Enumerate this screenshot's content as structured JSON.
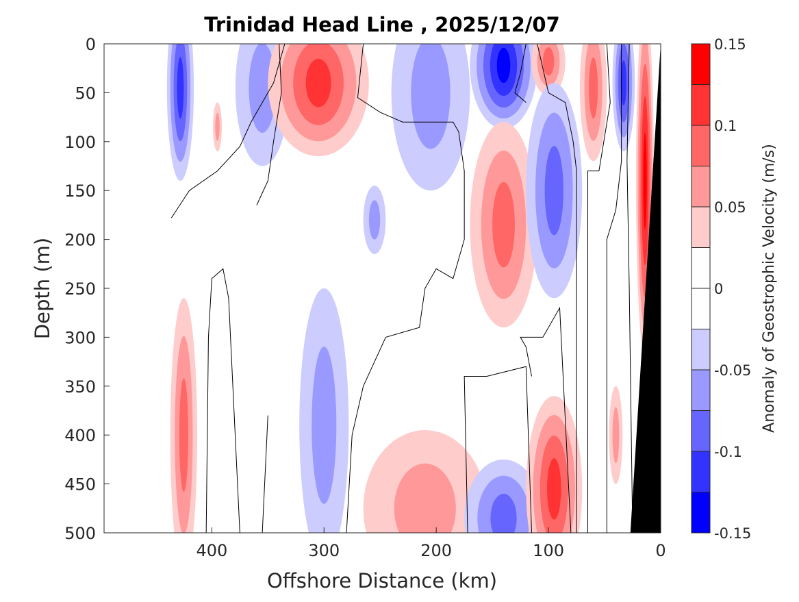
{
  "chart_data": {
    "type": "heatmap",
    "subtype": "filled-contour",
    "title": "Trinidad Head Line , 2025/12/07",
    "xlabel": "Offshore Distance (km)",
    "ylabel": "Depth (m)",
    "xlim": [
      496,
      0
    ],
    "ylim": [
      0,
      500
    ],
    "xticks": [
      400,
      300,
      200,
      100,
      0
    ],
    "yticks": [
      0,
      50,
      100,
      150,
      200,
      250,
      300,
      350,
      400,
      450,
      500
    ],
    "colorbar": {
      "label": "Anomaly of Geostrophic Velocity (m/s)",
      "range": [
        -0.15,
        0.15
      ],
      "step": 0.025,
      "ticks": [
        0.15,
        0.1,
        0.05,
        0,
        -0.05,
        -0.1,
        -0.15
      ],
      "tick_labels": [
        "0.15",
        "0.1",
        "0.05",
        "0",
        "-0.05",
        "-0.1",
        "-0.15"
      ],
      "colors": [
        "#0000ff",
        "#3333ff",
        "#6666ff",
        "#9999ff",
        "#ccccff",
        "#ffffff",
        "#ffffff",
        "#ffcccc",
        "#ff9999",
        "#ff6666",
        "#ff3333",
        "#ff0000"
      ]
    },
    "features": [
      {
        "x": 428,
        "depth": 45,
        "rx": 12,
        "ry": 95,
        "peak": -0.1
      },
      {
        "x": 355,
        "depth": 45,
        "rx": 24,
        "ry": 80,
        "peak": -0.05
      },
      {
        "x": 305,
        "depth": 40,
        "rx": 45,
        "ry": 75,
        "peak": 0.1
      },
      {
        "x": 205,
        "depth": 50,
        "rx": 35,
        "ry": 100,
        "peak": -0.05
      },
      {
        "x": 140,
        "depth": 22,
        "rx": 30,
        "ry": 65,
        "peak": -0.125
      },
      {
        "x": 100,
        "depth": 18,
        "rx": 15,
        "ry": 35,
        "peak": 0.075
      },
      {
        "x": 60,
        "depth": 45,
        "rx": 12,
        "ry": 75,
        "peak": 0.075
      },
      {
        "x": 33,
        "depth": 40,
        "rx": 10,
        "ry": 70,
        "peak": -0.1
      },
      {
        "x": 14,
        "depth": 140,
        "rx": 8,
        "ry": 180,
        "peak": 0.125
      },
      {
        "x": 140,
        "depth": 185,
        "rx": 30,
        "ry": 105,
        "peak": 0.075
      },
      {
        "x": 95,
        "depth": 150,
        "rx": 25,
        "ry": 110,
        "peak": -0.075
      },
      {
        "x": 395,
        "depth": 85,
        "rx": 4,
        "ry": 25,
        "peak": 0.05
      },
      {
        "x": 255,
        "depth": 180,
        "rx": 10,
        "ry": 35,
        "peak": -0.05
      },
      {
        "x": 425,
        "depth": 400,
        "rx": 12,
        "ry": 140,
        "peak": 0.075
      },
      {
        "x": 300,
        "depth": 390,
        "rx": 22,
        "ry": 140,
        "peak": -0.05
      },
      {
        "x": 210,
        "depth": 475,
        "rx": 55,
        "ry": 80,
        "peak": 0.05
      },
      {
        "x": 140,
        "depth": 485,
        "rx": 35,
        "ry": 60,
        "peak": -0.075
      },
      {
        "x": 95,
        "depth": 455,
        "rx": 25,
        "ry": 95,
        "peak": 0.1
      },
      {
        "x": 40,
        "depth": 400,
        "rx": 6,
        "ry": 50,
        "peak": 0.05
      }
    ],
    "zero_contours": [
      [
        [
          436,
          178
        ],
        [
          420,
          150
        ],
        [
          395,
          130
        ],
        [
          375,
          105
        ],
        [
          365,
          80
        ],
        [
          345,
          40
        ],
        [
          335,
          0
        ]
      ],
      [
        [
          405,
          500
        ],
        [
          403,
          300
        ],
        [
          400,
          240
        ],
        [
          390,
          230
        ],
        [
          385,
          260
        ],
        [
          375,
          500
        ]
      ],
      [
        [
          375,
          500
        ],
        [
          355,
          500
        ],
        [
          350,
          380
        ]
      ],
      [
        [
          360,
          165
        ],
        [
          350,
          140
        ],
        [
          345,
          100
        ],
        [
          338,
          50
        ],
        [
          340,
          0
        ]
      ],
      [
        [
          280,
          500
        ],
        [
          275,
          400
        ],
        [
          265,
          350
        ],
        [
          245,
          300
        ],
        [
          215,
          290
        ],
        [
          210,
          250
        ],
        [
          200,
          230
        ],
        [
          185,
          240
        ],
        [
          175,
          200
        ],
        [
          175,
          130
        ],
        [
          180,
          90
        ],
        [
          185,
          80
        ],
        [
          230,
          80
        ],
        [
          250,
          70
        ],
        [
          270,
          55
        ],
        [
          265,
          0
        ]
      ],
      [
        [
          172,
          500
        ],
        [
          175,
          340
        ],
        [
          155,
          340
        ],
        [
          120,
          330
        ],
        [
          115,
          500
        ]
      ],
      [
        [
          115,
          340
        ],
        [
          120,
          310
        ],
        [
          125,
          300
        ],
        [
          105,
          300
        ],
        [
          90,
          270
        ],
        [
          80,
          500
        ]
      ],
      [
        [
          120,
          60
        ],
        [
          130,
          50
        ],
        [
          125,
          30
        ],
        [
          120,
          0
        ]
      ],
      [
        [
          75,
          500
        ],
        [
          75,
          130
        ],
        [
          78,
          100
        ],
        [
          85,
          60
        ],
        [
          100,
          50
        ],
        [
          110,
          0
        ]
      ],
      [
        [
          65,
          500
        ],
        [
          65,
          130
        ],
        [
          55,
          130
        ],
        [
          45,
          60
        ],
        [
          48,
          0
        ]
      ],
      [
        [
          48,
          500
        ],
        [
          48,
          200
        ],
        [
          40,
          170
        ],
        [
          35,
          120
        ],
        [
          35,
          0
        ]
      ],
      [
        [
          25,
          500
        ],
        [
          28,
          250
        ],
        [
          30,
          120
        ],
        [
          28,
          0
        ]
      ]
    ],
    "bathymetry": [
      [
        0,
        0
      ],
      [
        27,
        500
      ],
      [
        0,
        500
      ]
    ]
  }
}
